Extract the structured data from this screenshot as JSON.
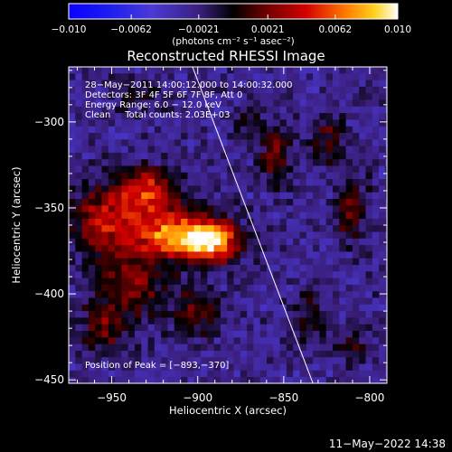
{
  "chart_data": {
    "type": "heatmap",
    "title": "Reconstructed RHESSI Image",
    "xlabel": "Heliocentric X (arcsec)",
    "ylabel": "Heliocentric Y (arcsec)",
    "xlim": [
      -975,
      -790
    ],
    "ylim": [
      -452,
      -268
    ],
    "x_ticks": [
      -950,
      -900,
      -850,
      -800
    ],
    "y_ticks": [
      -300,
      -350,
      -400,
      -450
    ],
    "x_tick_labels": [
      "−950",
      "−900",
      "−850",
      "−800"
    ],
    "y_tick_labels": [
      "−300",
      "−350",
      "−400",
      "−450"
    ],
    "colorbar": {
      "min": -0.01,
      "max": 0.01,
      "tick_values": [
        -0.01,
        -0.0062,
        -0.0021,
        0.0021,
        0.0062,
        0.01
      ],
      "tick_labels": [
        "−0.010",
        "−0.0062",
        "−0.0021",
        "0.0021",
        "0.0062",
        "0.010"
      ],
      "unit_label": "(photons cm⁻² s⁻¹ asec⁻²)"
    },
    "annotations": [
      "28−May−2011 14:00:12.000 to 14:00:32.000",
      "Detectors: 3F 4F 5F 6F 7F 8F, Att 0",
      "Energy Range: 6.0 − 12.0 keV",
      "Clean     Total counts: 2.03E+03"
    ],
    "peak_label": "Position of Peak = [−893,−370]",
    "peak": {
      "x": -893,
      "y": -370
    },
    "limb_line": {
      "x": [
        -903,
        -833
      ],
      "y": [
        -268,
        -452
      ]
    },
    "sources": [
      {
        "x": -930,
        "y": -340,
        "amp": 0.0075,
        "sx": 12,
        "sy": 9
      },
      {
        "x": -915,
        "y": -365,
        "amp": 0.009,
        "sx": 18,
        "sy": 10
      },
      {
        "x": -893,
        "y": -370,
        "amp": 0.01,
        "sx": 12,
        "sy": 8
      },
      {
        "x": -955,
        "y": -358,
        "amp": 0.006,
        "sx": 14,
        "sy": 14
      },
      {
        "x": -940,
        "y": -395,
        "amp": 0.005,
        "sx": 14,
        "sy": 12
      },
      {
        "x": -900,
        "y": -410,
        "amp": 0.004,
        "sx": 10,
        "sy": 10
      },
      {
        "x": -855,
        "y": -320,
        "amp": 0.0042,
        "sx": 6,
        "sy": 12
      },
      {
        "x": -825,
        "y": -310,
        "amp": 0.0035,
        "sx": 7,
        "sy": 10
      },
      {
        "x": -810,
        "y": -352,
        "amp": 0.0036,
        "sx": 7,
        "sy": 14
      },
      {
        "x": -835,
        "y": -415,
        "amp": 0.003,
        "sx": 8,
        "sy": 10
      },
      {
        "x": -810,
        "y": -430,
        "amp": 0.0028,
        "sx": 6,
        "sy": 8
      },
      {
        "x": -955,
        "y": -420,
        "amp": 0.004,
        "sx": 10,
        "sy": 10
      },
      {
        "x": -870,
        "y": -300,
        "amp": 0.0025,
        "sx": 6,
        "sy": 8
      },
      {
        "x": -935,
        "y": -285,
        "amp": 0.0022,
        "sx": 10,
        "sy": 6
      }
    ],
    "grid": false
  },
  "footer": {
    "date": "11−May−2022 14:38"
  }
}
